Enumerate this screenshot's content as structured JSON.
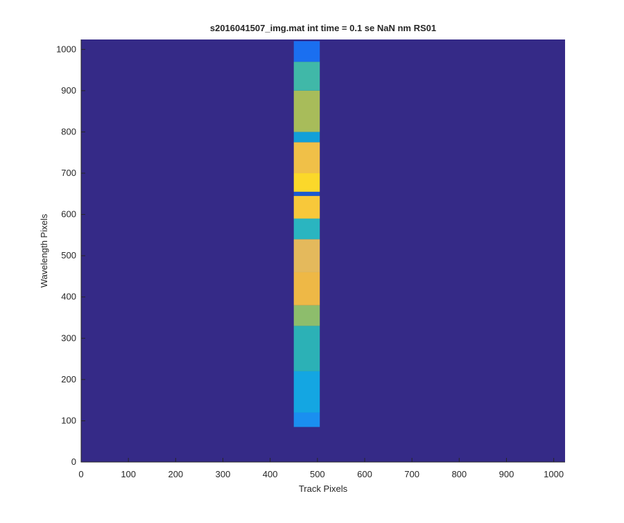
{
  "chart_data": {
    "type": "image",
    "title": "s2016041507_img.mat int time = 0.1 se  NaN nm RS01",
    "xlabel": "Track Pixels",
    "ylabel": "Wavelength Pixels",
    "xlim": [
      0,
      1024
    ],
    "ylim": [
      0,
      1024
    ],
    "xticks": [
      0,
      100,
      200,
      300,
      400,
      500,
      600,
      700,
      800,
      900,
      1000
    ],
    "yticks": [
      0,
      100,
      200,
      300,
      400,
      500,
      600,
      700,
      800,
      900,
      1000
    ],
    "background": "#352a87",
    "stripe_x": [
      450,
      505
    ],
    "segments": [
      {
        "y": [
          85,
          120
        ],
        "color": "#1a8ff0"
      },
      {
        "y": [
          120,
          220
        ],
        "color": "#14a6e2"
      },
      {
        "y": [
          220,
          330
        ],
        "color": "#2cb1b6"
      },
      {
        "y": [
          330,
          380
        ],
        "color": "#8dbd6c"
      },
      {
        "y": [
          380,
          460
        ],
        "color": "#eeb846"
      },
      {
        "y": [
          460,
          540
        ],
        "color": "#e4b95c"
      },
      {
        "y": [
          540,
          590
        ],
        "color": "#2ab5c0"
      },
      {
        "y": [
          590,
          645
        ],
        "color": "#f8c83a"
      },
      {
        "y": [
          645,
          655
        ],
        "color": "#1a5ad0"
      },
      {
        "y": [
          655,
          700
        ],
        "color": "#fbd82a"
      },
      {
        "y": [
          700,
          775
        ],
        "color": "#f0c048"
      },
      {
        "y": [
          775,
          800
        ],
        "color": "#12a0d8"
      },
      {
        "y": [
          800,
          900
        ],
        "color": "#a8bc5a"
      },
      {
        "y": [
          900,
          970
        ],
        "color": "#40b8a8"
      },
      {
        "y": [
          970,
          1020
        ],
        "color": "#1a6ff0"
      }
    ]
  }
}
